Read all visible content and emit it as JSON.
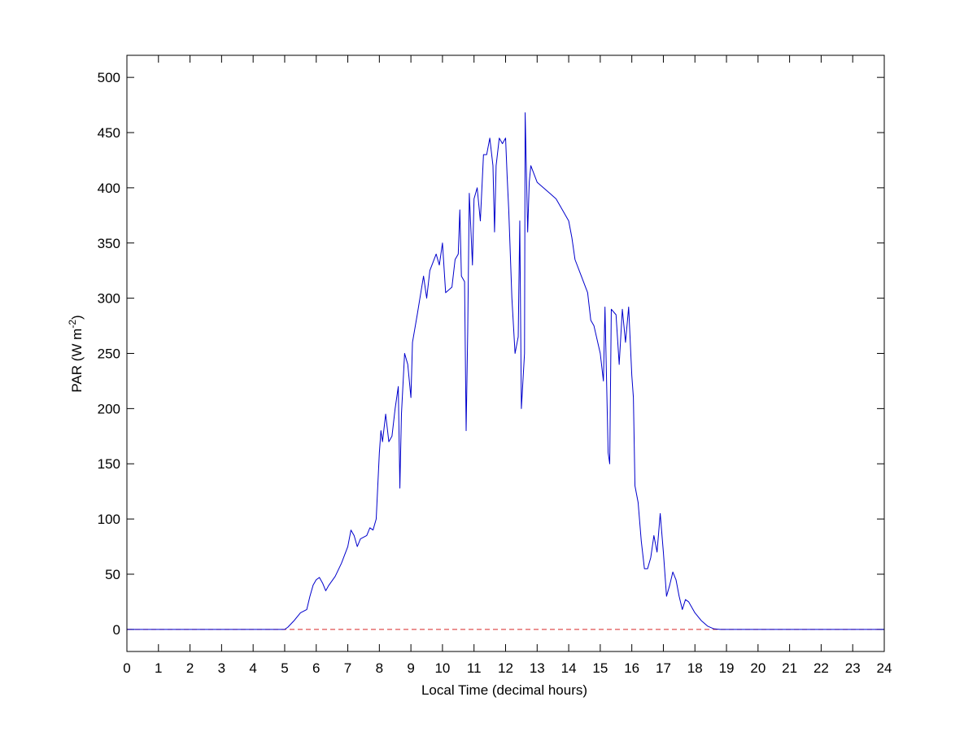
{
  "chart_data": {
    "type": "line",
    "xlabel": "Local Time (decimal hours)",
    "ylabel": {
      "text": "PAR (W m",
      "superscript": "-2",
      "suffix": ")"
    },
    "x": [
      0,
      5.0,
      5.1,
      5.3,
      5.5,
      5.7,
      5.8,
      5.9,
      6.0,
      6.1,
      6.2,
      6.3,
      6.4,
      6.6,
      6.8,
      7.0,
      7.1,
      7.2,
      7.3,
      7.4,
      7.6,
      7.7,
      7.8,
      7.9,
      8.0,
      8.05,
      8.1,
      8.2,
      8.3,
      8.4,
      8.5,
      8.6,
      8.65,
      8.7,
      8.8,
      8.9,
      9.0,
      9.05,
      9.2,
      9.4,
      9.5,
      9.6,
      9.8,
      9.9,
      10.0,
      10.1,
      10.3,
      10.4,
      10.5,
      10.55,
      10.6,
      10.7,
      10.75,
      10.8,
      10.85,
      10.95,
      11.0,
      11.1,
      11.2,
      11.3,
      11.4,
      11.5,
      11.6,
      11.65,
      11.7,
      11.8,
      11.9,
      12.0,
      12.05,
      12.1,
      12.2,
      12.3,
      12.4,
      12.45,
      12.5,
      12.6,
      12.62,
      12.7,
      12.75,
      12.8,
      13.0,
      13.2,
      13.4,
      13.6,
      13.8,
      14.0,
      14.1,
      14.2,
      14.4,
      14.6,
      14.7,
      14.8,
      15.0,
      15.1,
      15.15,
      15.25,
      15.3,
      15.35,
      15.5,
      15.6,
      15.7,
      15.8,
      15.9,
      16.0,
      16.05,
      16.1,
      16.2,
      16.3,
      16.4,
      16.5,
      16.6,
      16.7,
      16.8,
      16.9,
      17.0,
      17.1,
      17.2,
      17.3,
      17.4,
      17.5,
      17.6,
      17.7,
      17.8,
      18.0,
      18.2,
      18.4,
      18.6,
      18.8,
      24
    ],
    "series": [
      {
        "color": "#0000cc",
        "values": [
          0,
          0,
          2,
          8,
          15,
          18,
          30,
          40,
          45,
          47,
          42,
          35,
          40,
          48,
          60,
          75,
          90,
          85,
          75,
          82,
          85,
          92,
          90,
          100,
          160,
          180,
          170,
          195,
          170,
          175,
          200,
          220,
          128,
          195,
          250,
          240,
          210,
          260,
          285,
          320,
          300,
          325,
          340,
          330,
          350,
          305,
          310,
          335,
          340,
          380,
          320,
          315,
          180,
          270,
          395,
          330,
          390,
          400,
          370,
          430,
          430,
          445,
          420,
          360,
          420,
          445,
          440,
          445,
          410,
          380,
          300,
          250,
          265,
          370,
          200,
          250,
          468,
          360,
          405,
          420,
          405,
          400,
          395,
          390,
          380,
          370,
          355,
          335,
          320,
          305,
          280,
          275,
          250,
          225,
          292,
          160,
          150,
          290,
          285,
          240,
          290,
          260,
          292,
          230,
          210,
          130,
          115,
          80,
          55,
          55,
          65,
          85,
          70,
          105,
          70,
          30,
          40,
          52,
          45,
          30,
          18,
          27,
          25,
          15,
          8,
          3,
          0.5,
          0,
          0
        ]
      }
    ],
    "reference_line": {
      "y": 0,
      "color": "#d62728",
      "dashed": true
    },
    "xlim": [
      0,
      24
    ],
    "xticks": [
      0,
      1,
      2,
      3,
      4,
      5,
      6,
      7,
      8,
      9,
      10,
      11,
      12,
      13,
      14,
      15,
      16,
      17,
      18,
      19,
      20,
      21,
      22,
      23,
      24
    ],
    "ylim": [
      -20,
      520
    ],
    "yticks": [
      0,
      50,
      100,
      150,
      200,
      250,
      300,
      350,
      400,
      450,
      500
    ],
    "grid": false
  }
}
